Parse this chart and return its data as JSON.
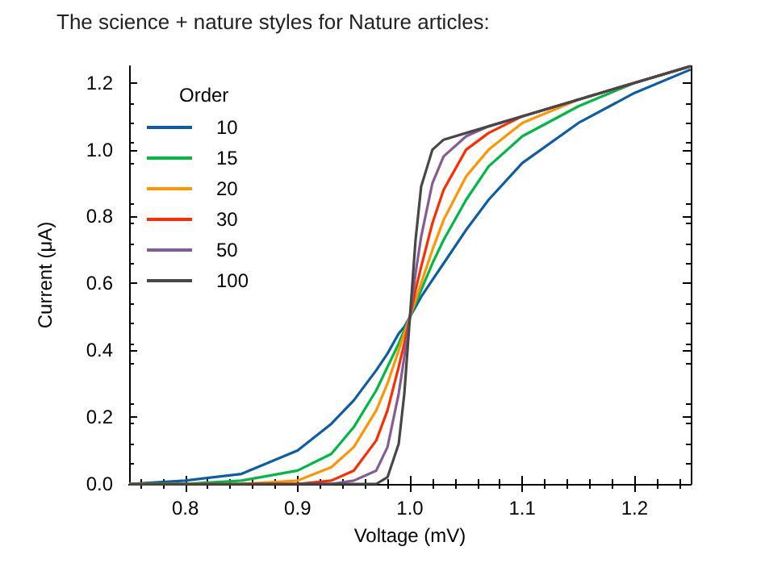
{
  "chart_data": {
    "type": "line",
    "title": "The science + nature styles for Nature articles:",
    "xlabel": "Voltage (mV)",
    "ylabel": "Current (μA)",
    "legend_title": "Order",
    "legend": "top left",
    "grid": false,
    "marker": "none",
    "line_style": "solid",
    "x": [
      0.75,
      0.8,
      0.85,
      0.9,
      0.93,
      0.95,
      0.97,
      0.98,
      0.99,
      0.995,
      1.0,
      1.005,
      1.01,
      1.02,
      1.03,
      1.05,
      1.07,
      1.1,
      1.15,
      1.2,
      1.25
    ],
    "xlim": [
      0.75,
      1.25
    ],
    "xticks": [
      0.8,
      0.9,
      {
        "value": 1,
        "label": "1.0"
      },
      1.1,
      1.2
    ],
    "ylim": [
      0,
      1.25
    ],
    "yticks": [
      {
        "value": 0,
        "label": "0.0"
      },
      0.2,
      0.4,
      0.6,
      0.8,
      {
        "value": 1,
        "label": "1.0"
      },
      1.2
    ],
    "series": [
      {
        "name": "10",
        "color": "#0c5da5",
        "values": [
          0.0,
          0.01,
          0.03,
          0.1,
          0.18,
          0.25,
          0.34,
          0.39,
          0.45,
          0.47,
          0.5,
          0.53,
          0.56,
          0.61,
          0.66,
          0.76,
          0.85,
          0.96,
          1.08,
          1.17,
          1.24
        ]
      },
      {
        "name": "15",
        "color": "#00b945",
        "values": [
          0.0,
          0.0,
          0.01,
          0.04,
          0.09,
          0.17,
          0.28,
          0.35,
          0.42,
          0.46,
          0.5,
          0.54,
          0.58,
          0.66,
          0.73,
          0.85,
          0.95,
          1.04,
          1.13,
          1.2,
          1.25
        ]
      },
      {
        "name": "20",
        "color": "#ff9500",
        "values": [
          0.0,
          0.0,
          0.0,
          0.01,
          0.05,
          0.11,
          0.22,
          0.3,
          0.4,
          0.45,
          0.5,
          0.55,
          0.6,
          0.7,
          0.79,
          0.92,
          1.0,
          1.08,
          1.15,
          1.2,
          1.25
        ]
      },
      {
        "name": "30",
        "color": "#ff2c00",
        "values": [
          null,
          null,
          0.0,
          0.0,
          0.01,
          0.04,
          0.13,
          0.22,
          0.35,
          0.42,
          0.5,
          0.58,
          0.65,
          0.78,
          0.88,
          1.0,
          1.05,
          1.1,
          1.15,
          1.2,
          1.25
        ]
      },
      {
        "name": "50",
        "color": "#845b97",
        "values": [
          null,
          null,
          null,
          0.0,
          0.0,
          0.01,
          0.04,
          0.11,
          0.27,
          0.38,
          0.5,
          0.63,
          0.74,
          0.9,
          0.98,
          1.04,
          1.07,
          1.1,
          1.15,
          1.2,
          1.25
        ]
      },
      {
        "name": "100",
        "color": "#474747",
        "values": [
          0.0,
          0.0,
          0.0,
          0.0,
          0.0,
          0.0,
          0.0,
          0.02,
          0.12,
          0.27,
          0.5,
          0.73,
          0.89,
          1.0,
          1.03,
          1.05,
          1.07,
          1.1,
          1.15,
          1.2,
          1.25
        ]
      }
    ]
  }
}
